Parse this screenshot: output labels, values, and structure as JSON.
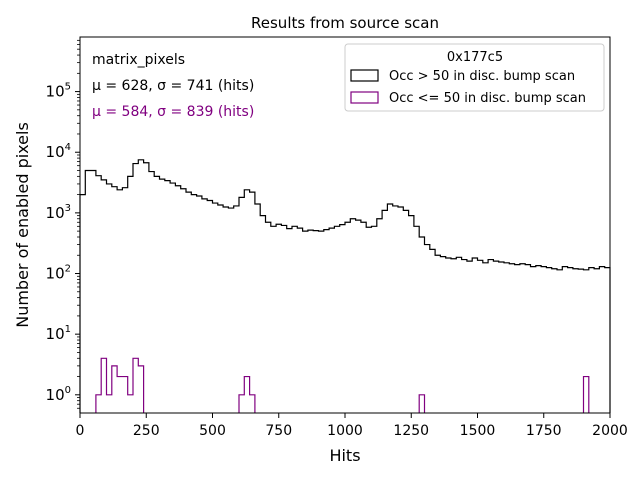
{
  "chart_data": {
    "type": "histogram",
    "title": "Results from source scan",
    "xlabel": "Hits",
    "ylabel": "Number of enabled pixels",
    "xlim": [
      0,
      2000
    ],
    "ylim_log10": [
      -0.3,
      5.9
    ],
    "yscale": "log",
    "x_ticks": [
      0,
      250,
      500,
      750,
      1000,
      1250,
      1500,
      1750,
      2000
    ],
    "x_tick_labels": [
      "0",
      "250",
      "500",
      "750",
      "1000",
      "1250",
      "1500",
      "1750",
      "2000"
    ],
    "y_ticks_log10": [
      0,
      1,
      2,
      3,
      4,
      5
    ],
    "y_tick_labels": [
      "10^0",
      "10^1",
      "10^2",
      "10^3",
      "10^4",
      "10^5"
    ],
    "bin_width": 20,
    "legend_location": "top-right",
    "legend_title": "0x177c5",
    "annotations": [
      {
        "text": "matrix_pixels",
        "color": "#000000"
      },
      {
        "text": "μ = 628, σ = 741 (hits)",
        "color": "#000000"
      },
      {
        "text": "μ = 584, σ = 839 (hits)",
        "color": "#800080"
      }
    ],
    "series": [
      {
        "name": "Occ > 50 in disc. bump scan",
        "color": "#000000",
        "bin_start": 0,
        "values": [
          2000,
          5000,
          5000,
          4100,
          3500,
          3000,
          2700,
          2400,
          2600,
          4000,
          6500,
          7500,
          6700,
          4800,
          4000,
          3600,
          3400,
          3100,
          2800,
          2500,
          2200,
          2000,
          1900,
          1700,
          1600,
          1450,
          1350,
          1250,
          1200,
          1300,
          1800,
          2400,
          2200,
          1400,
          900,
          700,
          600,
          650,
          620,
          550,
          600,
          560,
          500,
          520,
          510,
          500,
          530,
          560,
          600,
          640,
          700,
          800,
          760,
          700,
          580,
          600,
          800,
          1100,
          1400,
          1300,
          1250,
          1100,
          900,
          600,
          400,
          300,
          250,
          200,
          190,
          180,
          175,
          185,
          170,
          160,
          180,
          165,
          150,
          170,
          160,
          155,
          150,
          145,
          140,
          145,
          140,
          130,
          135,
          130,
          125,
          120,
          115,
          130,
          125,
          120,
          118,
          115,
          125,
          120,
          130,
          125
        ]
      },
      {
        "name": "Occ <= 50 in disc. bump scan",
        "color": "#800080",
        "points": [
          {
            "x0": 60,
            "x1": 80,
            "value": 1
          },
          {
            "x0": 80,
            "x1": 100,
            "value": 4
          },
          {
            "x0": 100,
            "x1": 120,
            "value": 1
          },
          {
            "x0": 120,
            "x1": 140,
            "value": 3
          },
          {
            "x0": 140,
            "x1": 180,
            "value": 2
          },
          {
            "x0": 180,
            "x1": 200,
            "value": 1
          },
          {
            "x0": 200,
            "x1": 220,
            "value": 4
          },
          {
            "x0": 220,
            "x1": 240,
            "value": 3
          },
          {
            "x0": 600,
            "x1": 620,
            "value": 1
          },
          {
            "x0": 620,
            "x1": 640,
            "value": 2
          },
          {
            "x0": 640,
            "x1": 660,
            "value": 1
          },
          {
            "x0": 1280,
            "x1": 1300,
            "value": 1
          },
          {
            "x0": 1900,
            "x1": 1920,
            "value": 2
          }
        ]
      }
    ]
  }
}
